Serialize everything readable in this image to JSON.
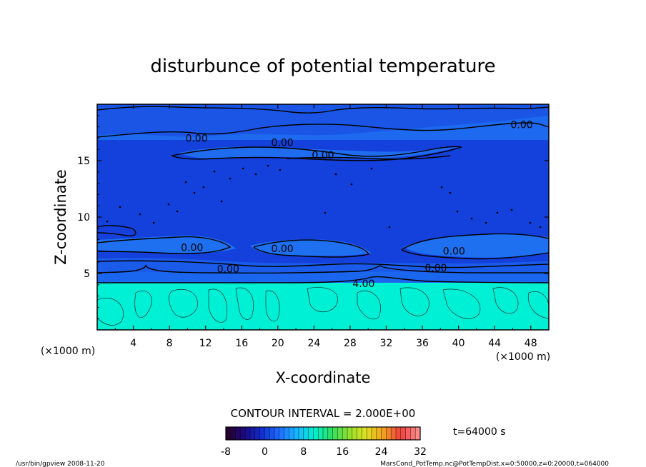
{
  "chart_data": {
    "type": "heatmap",
    "title": "disturbunce of potential temperature",
    "xlabel": "X-coordinate",
    "ylabel": "Z-coordinate",
    "x_unit": "(×1000 m)",
    "z_unit": "(×1000 m)",
    "xlim": [
      0,
      50
    ],
    "ylim": [
      0,
      20
    ],
    "x_ticks": [
      "4",
      "8",
      "12",
      "16",
      "20",
      "24",
      "28",
      "32",
      "36",
      "40",
      "44",
      "48"
    ],
    "y_ticks": [
      "5",
      "10",
      "15"
    ],
    "contour_labels": [
      {
        "text": "0.00",
        "x": 11,
        "z": 17.0
      },
      {
        "text": "0.00",
        "x": 20.5,
        "z": 16.6
      },
      {
        "text": "0.00",
        "x": 25,
        "z": 15.5
      },
      {
        "text": "0.00",
        "x": 47,
        "z": 18.2
      },
      {
        "text": "0.00",
        "x": 10.5,
        "z": 7.3
      },
      {
        "text": "0.00",
        "x": 20.5,
        "z": 7.2
      },
      {
        "text": "0.00",
        "x": 14.5,
        "z": 5.4
      },
      {
        "text": "0.00",
        "x": 39.5,
        "z": 7.0
      },
      {
        "text": "0.00",
        "x": 37.5,
        "z": 5.5
      },
      {
        "text": "4.00",
        "x": 29.5,
        "z": 4.1
      }
    ],
    "contour_interval_text": "CONTOUR INTERVAL = 2.000E+00",
    "colorbar": {
      "ticks": [
        "-8",
        "0",
        "8",
        "16",
        "24",
        "32"
      ],
      "min": -8,
      "max": 32,
      "colormap": "rainbow",
      "colors": [
        "#2a0030",
        "#1a0a8a",
        "#1030d0",
        "#1f6fff",
        "#17b8ff",
        "#00f0d0",
        "#30e060",
        "#90e030",
        "#e0e020",
        "#f0a020",
        "#f04040",
        "#ff8a8a"
      ]
    },
    "time_label": "t=64000 s",
    "field_colors": {
      "upper": "#1a55e6",
      "layer": "#1e6ff0",
      "middle": "#1540e0",
      "lower": "#00f0d6"
    }
  },
  "footer": {
    "left": "/usr/bin/gpview   2008-11-20",
    "right": "MarsCond_PotTemp.nc@PotTempDist,x=0:50000,z=0:20000,t=064000"
  }
}
